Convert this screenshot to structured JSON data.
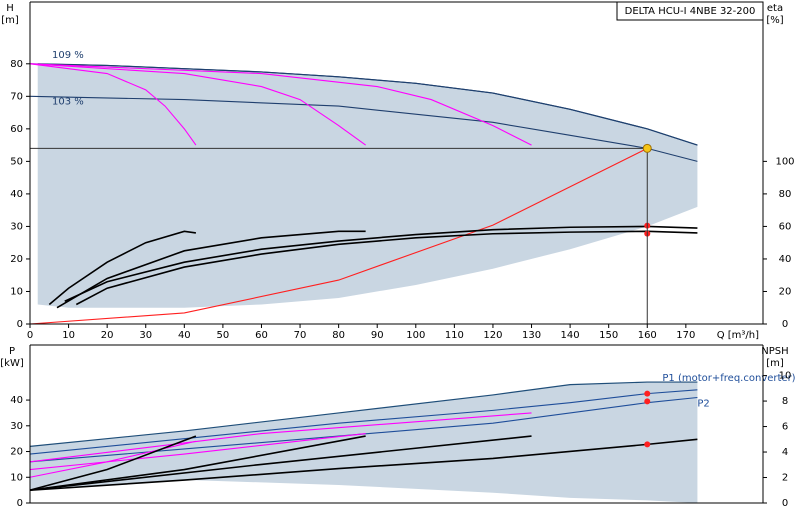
{
  "chart_data": [
    {
      "type": "line",
      "title": "DELTA HCU-I 4NBE 32-200",
      "ylabel": [
        "H",
        "[m]"
      ],
      "y2label": [
        "eta",
        "[%]"
      ],
      "xlabel": "Q [m³/h]",
      "xlim": [
        0,
        190
      ],
      "xticks": [
        0,
        10,
        20,
        30,
        40,
        50,
        60,
        70,
        80,
        90,
        100,
        110,
        120,
        130,
        140,
        150,
        160,
        170
      ],
      "ylim": [
        0,
        99
      ],
      "yticks": [
        0,
        10,
        20,
        30,
        40,
        50,
        60,
        70,
        80
      ],
      "y2lim": [
        0,
        198
      ],
      "y2ticks": [
        0,
        20,
        40,
        60,
        80,
        100
      ],
      "duty_point": {
        "x": 160,
        "y": 54,
        "color": "#f5c518"
      },
      "series": [
        {
          "type": "area",
          "color": "#c9d6e2",
          "stroke": "#1f4e79",
          "x": [
            2,
            10,
            20,
            40,
            60,
            80,
            100,
            120,
            140,
            160,
            173
          ],
          "values": [
            80,
            79.8,
            79.5,
            78.5,
            77.5,
            76,
            74,
            71,
            66,
            60,
            55
          ],
          "lower": [
            6,
            5,
            5,
            5,
            6,
            8,
            12,
            17,
            23,
            30,
            36
          ]
        },
        {
          "type": "line",
          "name": "109 %",
          "color": "#1f3f6e",
          "x": [
            0,
            20,
            40,
            60,
            80,
            100,
            120,
            140,
            160,
            173
          ],
          "values": [
            80,
            79.5,
            78.5,
            77.5,
            76,
            74,
            71,
            66,
            60,
            55
          ]
        },
        {
          "type": "line",
          "name": "103 %",
          "color": "#1f3f6e",
          "x": [
            0,
            40,
            80,
            120,
            140,
            160,
            173
          ],
          "values": [
            70,
            69,
            67,
            62,
            58,
            54,
            50
          ]
        },
        {
          "type": "line",
          "color": "#ff00ff",
          "x": [
            0,
            20,
            30,
            35,
            40,
            43
          ],
          "values": [
            80,
            77,
            72,
            67,
            60,
            55
          ]
        },
        {
          "type": "line",
          "color": "#ff00ff",
          "x": [
            0,
            40,
            60,
            70,
            80,
            87
          ],
          "values": [
            80,
            77,
            73,
            69,
            61,
            55
          ]
        },
        {
          "type": "line",
          "color": "#ff00ff",
          "x": [
            0,
            60,
            90,
            104,
            120,
            130
          ],
          "values": [
            80,
            77,
            73,
            69,
            61,
            55
          ]
        },
        {
          "type": "line",
          "color": "#ff2020",
          "x": [
            0,
            40,
            80,
            120,
            160
          ],
          "values": [
            0,
            3.4,
            13.5,
            30.4,
            54
          ]
        },
        {
          "type": "line",
          "axis": "y2",
          "color": "#000000",
          "x": [
            5,
            10,
            20,
            30,
            40,
            43
          ],
          "values": [
            12,
            22,
            38,
            50,
            57,
            56
          ]
        },
        {
          "type": "line",
          "axis": "y2",
          "color": "#000000",
          "x": [
            7,
            20,
            40,
            60,
            80,
            87
          ],
          "values": [
            10,
            28,
            45,
            53,
            57,
            57
          ]
        },
        {
          "type": "line",
          "axis": "y2",
          "color": "#000000",
          "x": [
            9,
            20,
            40,
            60,
            80,
            100,
            120,
            140,
            160,
            173
          ],
          "values": [
            14,
            26,
            38,
            46,
            51,
            55,
            58,
            59.5,
            60,
            59
          ]
        },
        {
          "type": "line",
          "axis": "y2",
          "color": "#000000",
          "x": [
            12,
            20,
            40,
            60,
            80,
            100,
            120,
            140,
            160,
            173
          ],
          "values": [
            12,
            22,
            35,
            43,
            49,
            53,
            55.5,
            56.5,
            57,
            56
          ]
        },
        {
          "type": "scatter",
          "axis": "y2",
          "color": "#ff2020",
          "x": [
            160,
            160
          ],
          "values": [
            60.5,
            55.6
          ]
        }
      ]
    },
    {
      "type": "line",
      "ylabel": [
        "P",
        "[kW]"
      ],
      "y2label": [
        "NPSH",
        "[m]"
      ],
      "xlim": [
        0,
        190
      ],
      "ylim": [
        0,
        61.4
      ],
      "yticks": [
        0,
        10,
        20,
        30,
        40
      ],
      "y2lim": [
        0,
        12.4
      ],
      "y2ticks": [
        0,
        2,
        4,
        6,
        8,
        10
      ],
      "series": [
        {
          "type": "area",
          "color": "#c9d6e2",
          "stroke": "#1f4e79",
          "x": [
            0,
            40,
            80,
            120,
            140,
            160,
            173
          ],
          "values": [
            22,
            28,
            35,
            42,
            46,
            47,
            47
          ],
          "lower": [
            5,
            9,
            7,
            4,
            2,
            1,
            0
          ]
        },
        {
          "type": "line",
          "name": "P1 (motor+freq.converter)",
          "color": "#1f4e9a",
          "x": [
            0,
            40,
            80,
            120,
            140,
            160,
            173
          ],
          "values": [
            19,
            25,
            31,
            36,
            39,
            42.5,
            44
          ]
        },
        {
          "type": "line",
          "name": "P2",
          "color": "#1f4e9a",
          "x": [
            0,
            40,
            80,
            120,
            160,
            173
          ],
          "values": [
            16,
            21,
            26,
            31,
            39,
            41
          ]
        },
        {
          "type": "line",
          "color": "#ff00ff",
          "x": [
            0,
            20,
            43
          ],
          "values": [
            10,
            16,
            24
          ]
        },
        {
          "type": "line",
          "color": "#ff00ff",
          "x": [
            0,
            40,
            87
          ],
          "values": [
            13,
            19,
            27
          ]
        },
        {
          "type": "line",
          "color": "#ff00ff",
          "x": [
            0,
            60,
            130
          ],
          "values": [
            16,
            27,
            35
          ]
        },
        {
          "type": "line",
          "color": "#000000",
          "x": [
            0,
            20,
            43
          ],
          "values": [
            5,
            13,
            26
          ]
        },
        {
          "type": "line",
          "color": "#000000",
          "x": [
            0,
            40,
            87
          ],
          "values": [
            5,
            13,
            26
          ]
        },
        {
          "type": "line",
          "color": "#000000",
          "x": [
            0,
            60,
            130
          ],
          "values": [
            5,
            15,
            26
          ]
        },
        {
          "type": "line",
          "axis": "y2",
          "color": "#000000",
          "x": [
            0,
            40,
            80,
            120,
            160,
            173
          ],
          "values": [
            1,
            1.8,
            2.7,
            3.5,
            4.6,
            5
          ]
        },
        {
          "type": "scatter",
          "color": "#ff2020",
          "x": [
            160,
            160
          ],
          "values": [
            42.5,
            39.5
          ]
        },
        {
          "type": "scatter",
          "axis": "y2",
          "color": "#ff2020",
          "x": [
            160
          ],
          "values": [
            4.6
          ]
        }
      ]
    }
  ]
}
